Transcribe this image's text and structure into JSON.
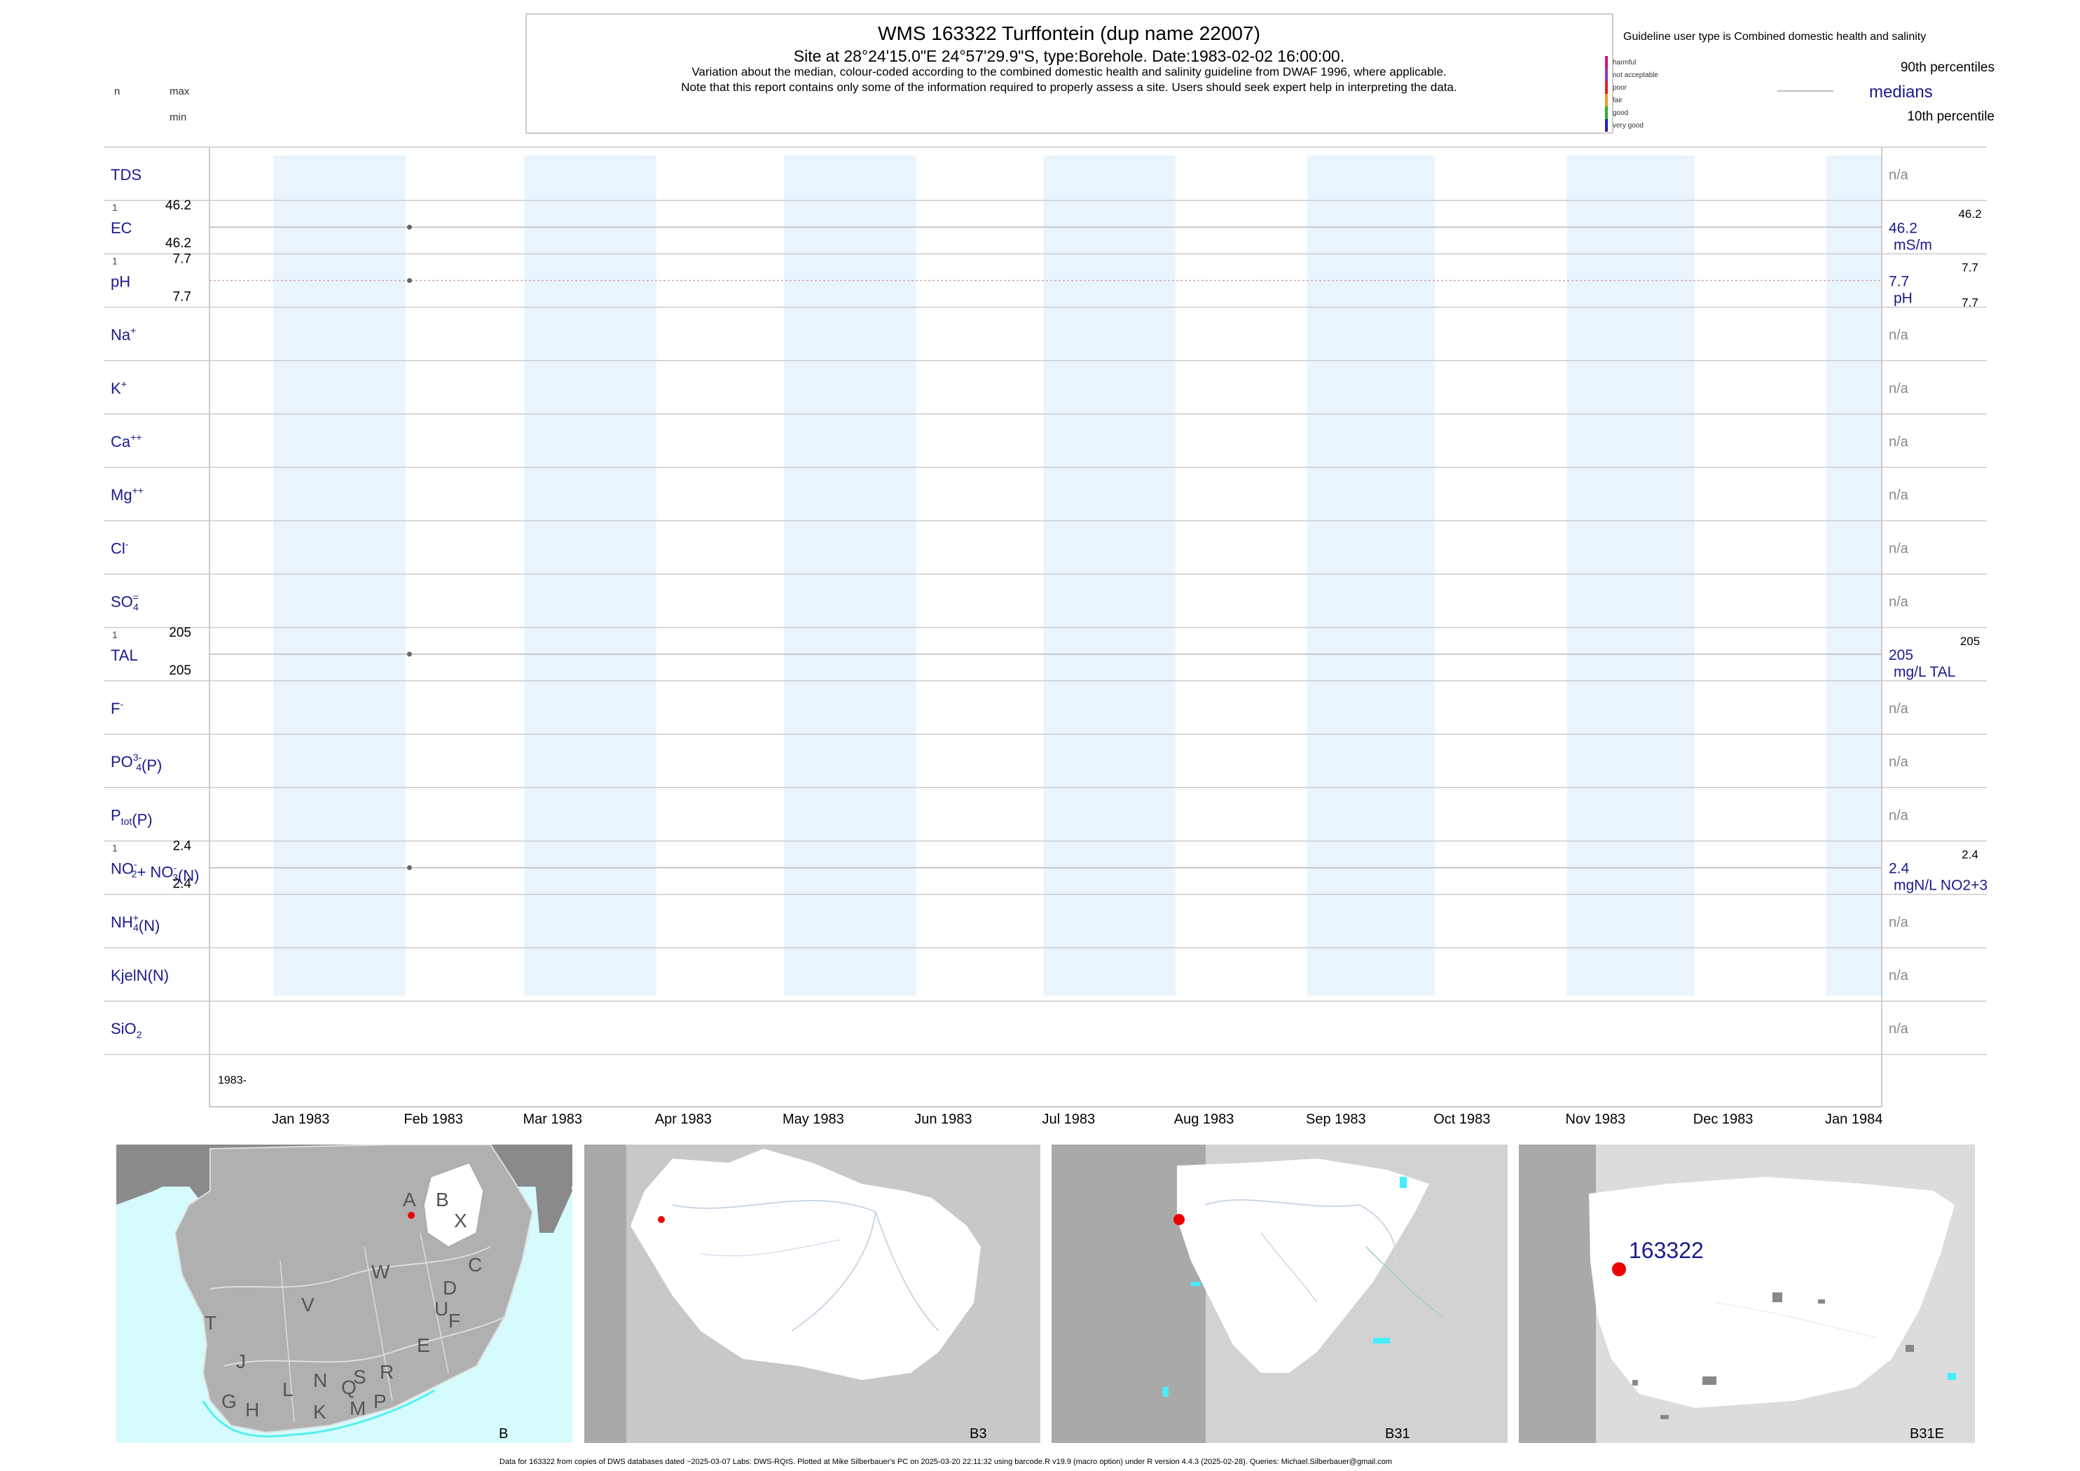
{
  "header": {
    "title": "WMS 163322  Turffontein (dup name 22007)",
    "subtitle": "Site at 28°24'15.0\"E 24°57'29.9\"S, type:Borehole. Date:1983-02-02 16:00:00.",
    "note1": "Variation about the median,  colour-coded according to the combined domestic health and salinity guideline from DWAF 1996, where applicable.",
    "note2": "Note that this report contains only some of the information required to properly assess a site. Users should seek expert help in interpreting the data."
  },
  "key_left": {
    "n": "n",
    "max": "max",
    "min": "min"
  },
  "legend": {
    "guideline_text": "Guideline user type is Combined domestic health and salinity",
    "categories": [
      {
        "label": "harmful",
        "color": "#d4147a"
      },
      {
        "label": "not acceptable",
        "color": "#9b30c8"
      },
      {
        "label": "poor",
        "color": "#e02020"
      },
      {
        "label": "fair",
        "color": "#e8a020"
      },
      {
        "label": "good",
        "color": "#30b030"
      },
      {
        "label": "very good",
        "color": "#2020c0"
      }
    ],
    "p90": "90th percentiles",
    "medians": "medians",
    "p10": "10th percentile"
  },
  "chart_data": {
    "type": "scatter",
    "x_axis": {
      "range": [
        "1982-12-17",
        "1984-01-14"
      ],
      "tick_labels": [
        "Jan 1983",
        "Feb 1983",
        "Mar 1983",
        "Apr 1983",
        "May 1983",
        "Jun 1983",
        "Jul 1983",
        "Aug 1983",
        "Sep 1983",
        "Oct 1983",
        "Nov 1983",
        "Dec 1983",
        "Jan 1984"
      ],
      "ticks": [
        "1983-01-01",
        "1983-02-01",
        "1983-03-01",
        "1983-04-01",
        "1983-05-01",
        "1983-06-01",
        "1983-07-01",
        "1983-08-01",
        "1983-09-01",
        "1983-10-01",
        "1983-11-01",
        "1983-12-01",
        "1984-01-01"
      ],
      "year_label": "1983-"
    },
    "rows": [
      {
        "label": "TDS",
        "right": "n/a"
      },
      {
        "label": "EC",
        "n": "1",
        "max": "46.2",
        "min": "46.2",
        "median": "46.2",
        "unit": "mS/m",
        "p90": "46.2",
        "points": [
          {
            "date": "1983-02-02",
            "value": 46.2
          }
        ]
      },
      {
        "label": "pH",
        "n": "1",
        "max": "7.7",
        "min": "7.7",
        "median": "7.7",
        "unit": "pH",
        "p90": "7.7",
        "p10": "7.7",
        "points": [
          {
            "date": "1983-02-02",
            "value": 7.7
          }
        ]
      },
      {
        "label": "Na",
        "sup": "+",
        "right": "n/a"
      },
      {
        "label": "K",
        "sup": "+",
        "right": "n/a"
      },
      {
        "label": "Ca",
        "sup": "++",
        "right": "n/a"
      },
      {
        "label": "Mg",
        "sup": "++",
        "right": "n/a"
      },
      {
        "label": "Cl",
        "sup": "-",
        "right": "n/a"
      },
      {
        "label": "SO",
        "sup": "=",
        "sub": "4",
        "right": "n/a"
      },
      {
        "label": "TAL",
        "n": "1",
        "max": "205",
        "min": "205",
        "median": "205",
        "unit": "mg/L TAL",
        "p90": "205",
        "points": [
          {
            "date": "1983-02-02",
            "value": 205
          }
        ]
      },
      {
        "label": "F",
        "sup": "-",
        "right": "n/a"
      },
      {
        "label": "PO",
        "sup": "3-",
        "sub": "4",
        "suffix": "(P)",
        "right": "n/a"
      },
      {
        "label": "P",
        "sub": "tot",
        "suffix": "(P)",
        "right": "n/a"
      },
      {
        "label": "NO",
        "sup": "-",
        "sub": "2",
        "suffix": "+ NO",
        "sup2": "-",
        "sub2": "3",
        "suffix2": "(N)",
        "n": "1",
        "max": "2.4",
        "min": "2.4",
        "median": "2.4",
        "unit": "mgN/L NO2+3",
        "p90": "2.4",
        "points": [
          {
            "date": "1983-02-02",
            "value": 2.4
          }
        ]
      },
      {
        "label": "NH",
        "sup": "+",
        "sub": "4",
        "suffix": "(N)",
        "right": "n/a"
      },
      {
        "label": "KjelN(N)",
        "right": "n/a"
      },
      {
        "label": "SiO",
        "sub": "2",
        "right": "n/a"
      }
    ]
  },
  "maps": [
    {
      "label": "B",
      "region_letters": [
        "A",
        "B",
        "X",
        "C",
        "W",
        "D",
        "V",
        "U",
        "F",
        "T",
        "E",
        "J",
        "L",
        "N",
        "Q",
        "S",
        "R",
        "G",
        "H",
        "K",
        "M",
        "P"
      ]
    },
    {
      "label": "B3"
    },
    {
      "label": "B31"
    },
    {
      "label": "B31E",
      "site_label": "163322"
    }
  ],
  "footer": "Data for 163322 from copies of DWS databases dated ~2025-03-07 Labs: DWS-RQIS. Plotted at Mike Silberbauer's PC on 2025-03-20 22:11:32 using barcode.R v19.9 (macro option) under R version 4.4.3 (2025-02-28). Queries: Michael.Silberbauer@gmail.com"
}
